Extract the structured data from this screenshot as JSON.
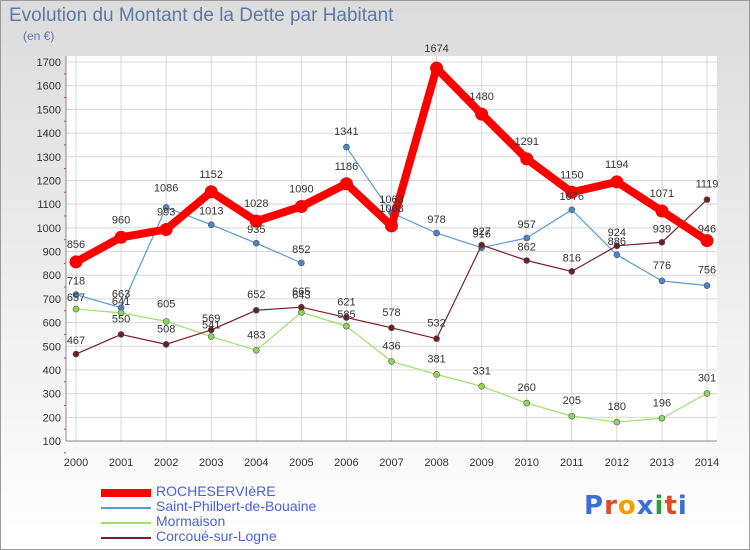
{
  "header": {
    "title": "Evolution du Montant de la Dette par Habitant",
    "subtitle": "(en €)"
  },
  "logo": {
    "text": "Proxiti",
    "colors": [
      "#3a6fd8",
      "#e04b24",
      "#f0a000",
      "#3a6fd8",
      "#2e9b3e",
      "#e04b24",
      "#3a6fd8"
    ]
  },
  "chart_data": {
    "type": "line",
    "title": "Evolution du Montant de la Dette par Habitant",
    "ylabel": "(en €)",
    "xlabel": "",
    "x": [
      "2000",
      "2001",
      "2002",
      "2003",
      "2004",
      "2005",
      "2006",
      "2007",
      "2008",
      "2009",
      "2010",
      "2011",
      "2012",
      "2013",
      "2014"
    ],
    "ylim": [
      100,
      1700
    ],
    "yticks": [
      100,
      200,
      300,
      400,
      500,
      600,
      700,
      800,
      900,
      1000,
      1100,
      1200,
      1300,
      1400,
      1500,
      1600,
      1700
    ],
    "grid": true,
    "legend_position": "bottom-left",
    "series": [
      {
        "name": "ROCHESERVIèRE",
        "color": "#ff0000",
        "emphasis": true,
        "values": [
          856,
          960,
          993,
          1152,
          1028,
          1090,
          1186,
          1008,
          1674,
          1480,
          1291,
          1150,
          1194,
          1071,
          946
        ]
      },
      {
        "name": "Saint-Philbert-de-Bouaine",
        "color": "#5b9bd5",
        "point_color": "#4a86c8",
        "values": [
          718,
          663,
          1086,
          1013,
          935,
          852,
          1341,
          1063,
          978,
          916,
          957,
          1076,
          886,
          776,
          756
        ],
        "gaps_after": [
          5
        ]
      },
      {
        "name": "Mormaison",
        "color": "#9ee06b",
        "point_color": "#8bd855",
        "values": [
          657,
          641,
          605,
          541,
          483,
          643,
          585,
          436,
          381,
          331,
          260,
          205,
          180,
          196,
          301
        ]
      },
      {
        "name": "Corcoué-sur-Logne",
        "color": "#7a1f2a",
        "point_color": "#6e1f25",
        "values": [
          467,
          550,
          508,
          569,
          652,
          665,
          621,
          578,
          532,
          927,
          862,
          816,
          924,
          939,
          1119
        ]
      }
    ]
  }
}
